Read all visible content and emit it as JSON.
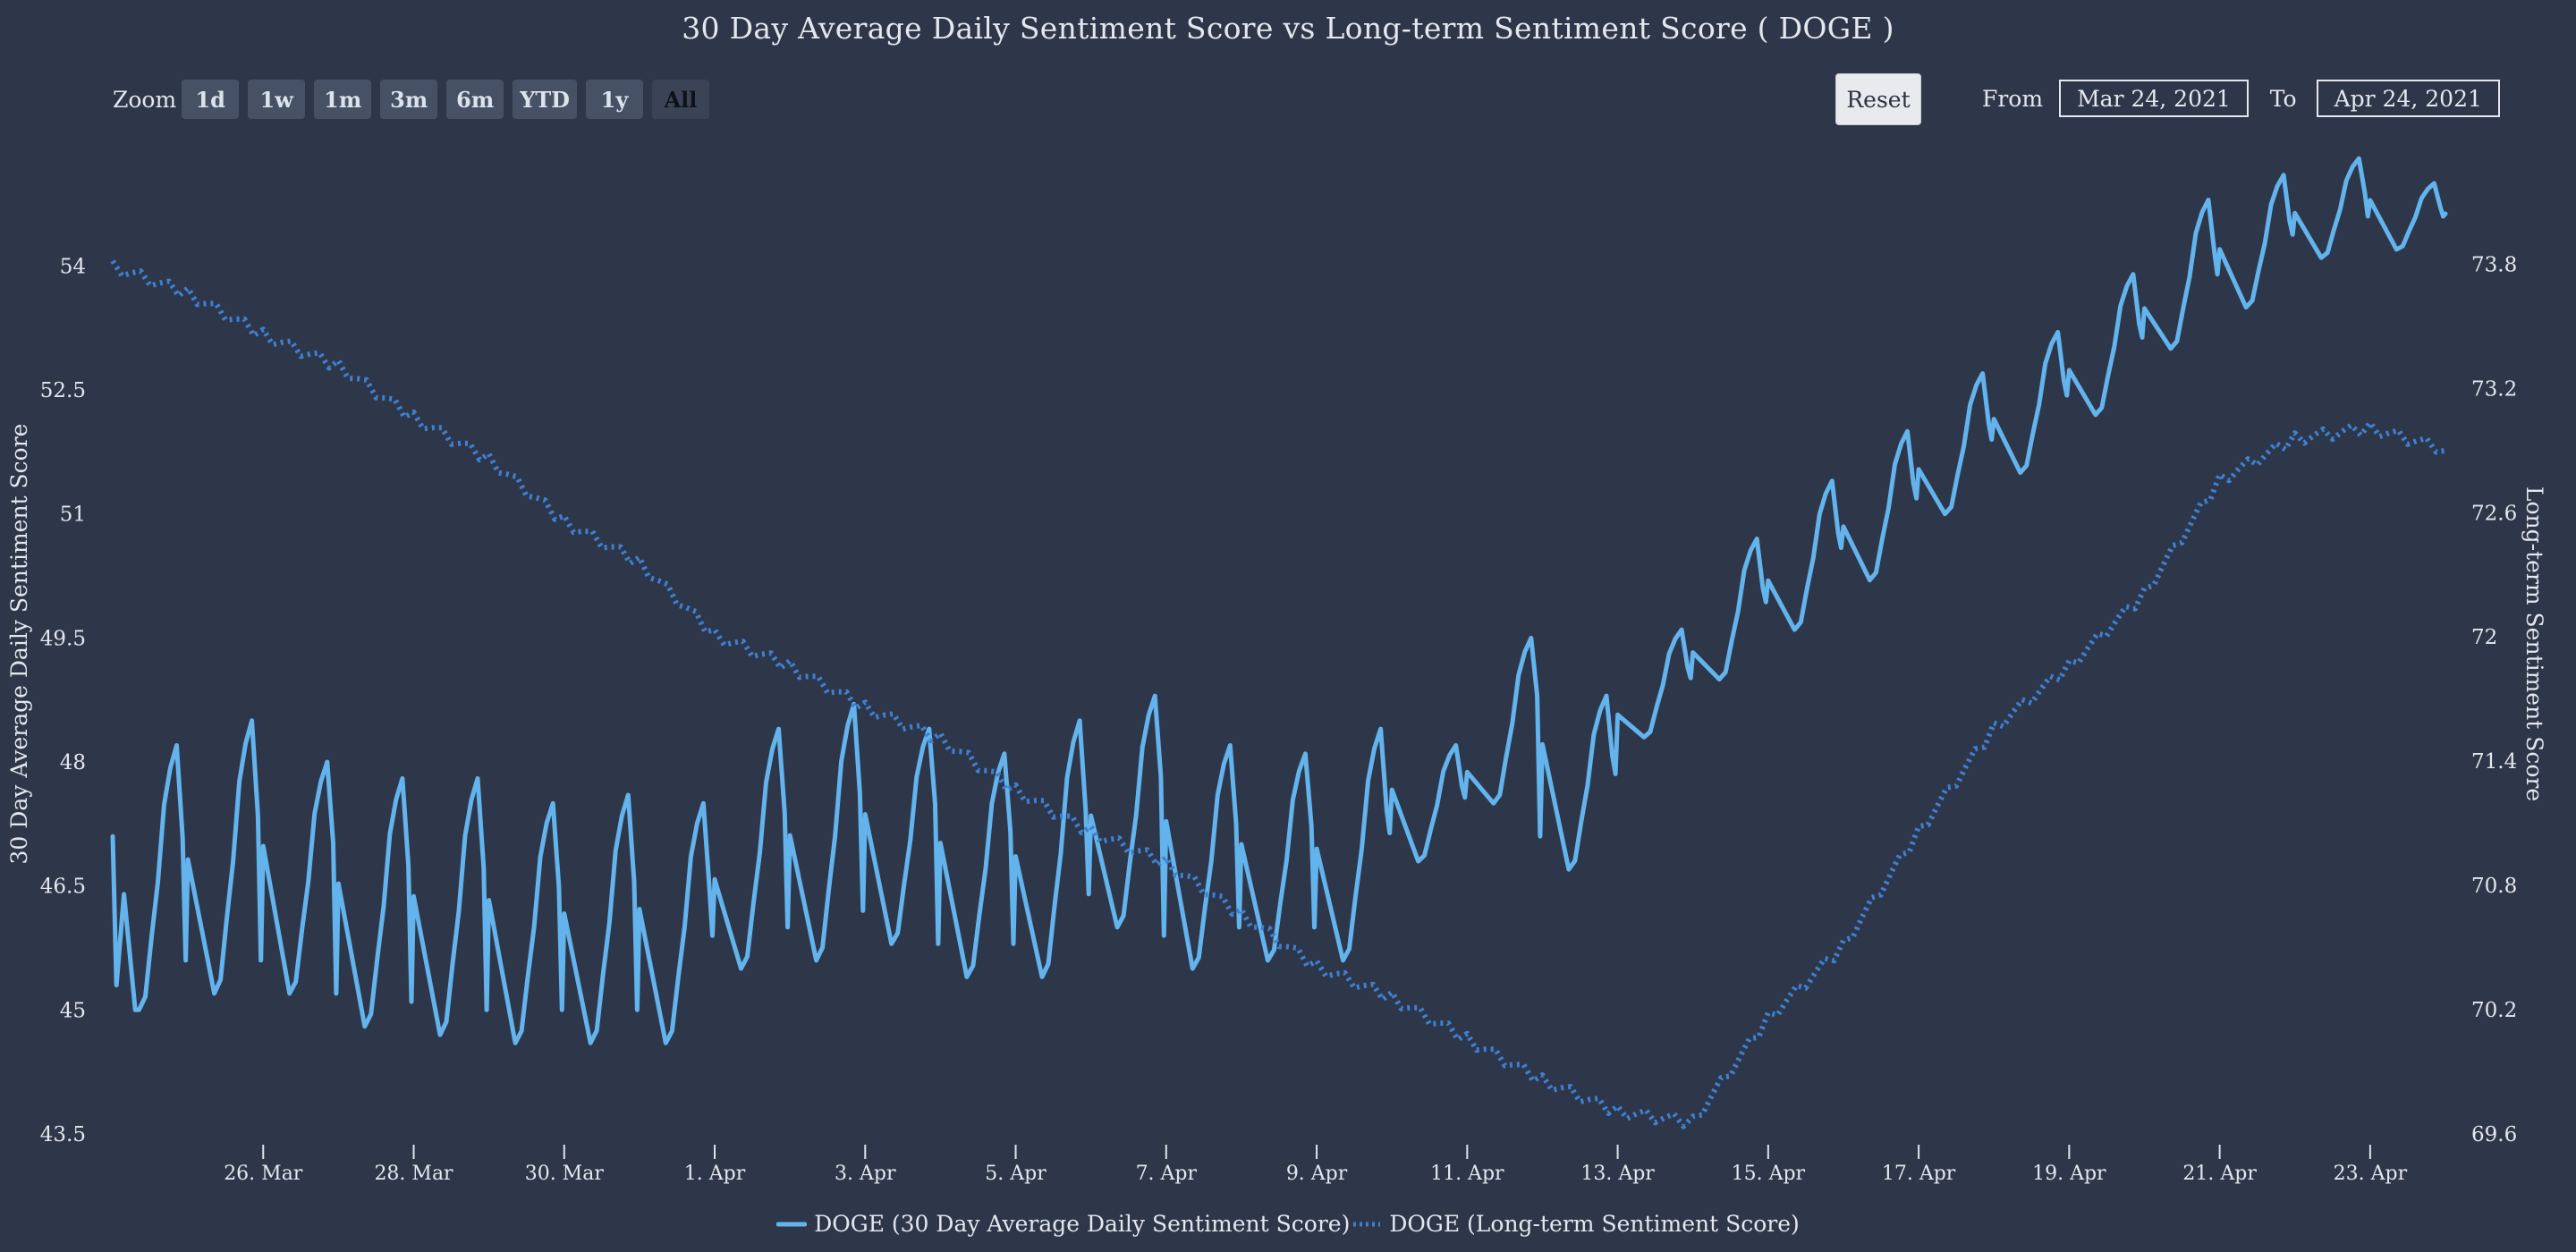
{
  "title": "30 Day Average Daily Sentiment Score vs Long-term Sentiment Score ( DOGE )",
  "range_selector": {
    "zoom_label": "Zoom",
    "buttons": [
      "1d",
      "1w",
      "1m",
      "3m",
      "6m",
      "YTD",
      "1y",
      "All"
    ],
    "active": "All",
    "reset_label": "Reset",
    "from_label": "From",
    "from_value": "Mar 24, 2021",
    "to_label": "To",
    "to_value": "Apr 24, 2021"
  },
  "colors": {
    "background": "#2e3749",
    "series_primary": "#63b3ed",
    "series_secondary": "#3f7fd0",
    "text": "#e4e7ee"
  },
  "chart_data": {
    "type": "line",
    "title": "30 Day Average Daily Sentiment Score vs Long-term Sentiment Score ( DOGE )",
    "x_axis": {
      "type": "datetime",
      "range": [
        "2021-03-24",
        "2021-04-24"
      ],
      "tick_labels": [
        "26. Mar",
        "28. Mar",
        "30. Mar",
        "1. Apr",
        "3. Apr",
        "5. Apr",
        "7. Apr",
        "9. Apr",
        "11. Apr",
        "13. Apr",
        "15. Apr",
        "17. Apr",
        "19. Apr",
        "21. Apr",
        "23. Apr"
      ],
      "tick_dates": [
        "2021-03-26",
        "2021-03-28",
        "2021-03-30",
        "2021-04-01",
        "2021-04-03",
        "2021-04-05",
        "2021-04-07",
        "2021-04-09",
        "2021-04-11",
        "2021-04-13",
        "2021-04-15",
        "2021-04-17",
        "2021-04-19",
        "2021-04-21",
        "2021-04-23"
      ]
    },
    "y_axis_left": {
      "label": "30 Day Average Daily Sentiment Score",
      "range": [
        43.5,
        55.4
      ],
      "tick_labels": [
        "43.5",
        "45",
        "46.5",
        "48",
        "49.5",
        "51",
        "52.5",
        "54"
      ],
      "ticks": [
        43.5,
        45,
        46.5,
        48,
        49.5,
        51,
        52.5,
        54
      ]
    },
    "y_axis_right": {
      "label": "Long-term Sentiment Score",
      "range": [
        69.6,
        74.35
      ],
      "tick_labels": [
        "69.6",
        "70.2",
        "70.8",
        "71.4",
        "72",
        "72.6",
        "73.2",
        "73.8"
      ],
      "ticks": [
        69.6,
        70.2,
        70.8,
        71.4,
        72,
        72.6,
        73.2,
        73.8
      ]
    },
    "grid": false,
    "legend_position": "bottom-center",
    "series": [
      {
        "name": "DOGE (30 Day Average Daily Sentiment Score)",
        "axis": "left",
        "style": "solid",
        "x": [
          "2021-03-24",
          "2021-03-25",
          "2021-03-26",
          "2021-03-27",
          "2021-03-28",
          "2021-03-29",
          "2021-03-30",
          "2021-03-31",
          "2021-04-01",
          "2021-04-02",
          "2021-04-03",
          "2021-04-04",
          "2021-04-05",
          "2021-04-06",
          "2021-04-07",
          "2021-04-08",
          "2021-04-09",
          "2021-04-10",
          "2021-04-11",
          "2021-04-12",
          "2021-04-13",
          "2021-04-14",
          "2021-04-15",
          "2021-04-16",
          "2021-04-17",
          "2021-04-18",
          "2021-04-19",
          "2021-04-20",
          "2021-04-21",
          "2021-04-22",
          "2021-04-23",
          "2021-04-24"
        ],
        "peaks": [
          null,
          48.2,
          48.5,
          48.0,
          47.8,
          47.8,
          47.5,
          47.6,
          47.5,
          48.4,
          48.7,
          48.4,
          48.1,
          48.5,
          48.8,
          48.2,
          48.1,
          48.4,
          48.2,
          49.5,
          48.8,
          49.6,
          50.7,
          51.4,
          52.0,
          52.7,
          53.2,
          53.9,
          54.8,
          55.1,
          55.3,
          55.0
        ],
        "troughs": [
          45.3,
          45.0,
          45.2,
          45.2,
          44.8,
          44.7,
          44.6,
          44.6,
          44.6,
          45.5,
          45.6,
          45.8,
          45.4,
          45.4,
          46.0,
          45.5,
          45.6,
          45.6,
          46.8,
          47.5,
          46.7,
          48.3,
          49.0,
          49.6,
          50.2,
          51.0,
          51.5,
          52.2,
          53.0,
          53.5,
          54.1,
          54.2
        ]
      },
      {
        "name": "DOGE (Long-term Sentiment Score)",
        "axis": "right",
        "style": "dotted",
        "x": [
          "2021-03-24",
          "2021-03-25",
          "2021-03-26",
          "2021-03-27",
          "2021-03-28",
          "2021-03-29",
          "2021-03-30",
          "2021-03-31",
          "2021-04-01",
          "2021-04-02",
          "2021-04-03",
          "2021-04-04",
          "2021-04-05",
          "2021-04-06",
          "2021-04-07",
          "2021-04-08",
          "2021-04-09",
          "2021-04-10",
          "2021-04-11",
          "2021-04-12",
          "2021-04-13",
          "2021-04-14",
          "2021-04-15",
          "2021-04-16",
          "2021-04-17",
          "2021-04-18",
          "2021-04-19",
          "2021-04-20",
          "2021-04-21",
          "2021-04-22",
          "2021-04-23",
          "2021-04-24"
        ],
        "values": [
          73.78,
          73.65,
          73.45,
          73.3,
          73.05,
          72.85,
          72.55,
          72.35,
          72.0,
          71.85,
          71.65,
          71.5,
          71.25,
          71.05,
          70.9,
          70.65,
          70.4,
          70.25,
          70.05,
          69.85,
          69.7,
          69.65,
          70.15,
          70.5,
          71.05,
          71.55,
          71.85,
          72.2,
          72.75,
          72.95,
          73.0,
          72.9
        ]
      }
    ]
  },
  "legend": {
    "items": [
      "DOGE (30 Day Average Daily Sentiment Score)",
      "DOGE (Long-term Sentiment Score)"
    ]
  }
}
